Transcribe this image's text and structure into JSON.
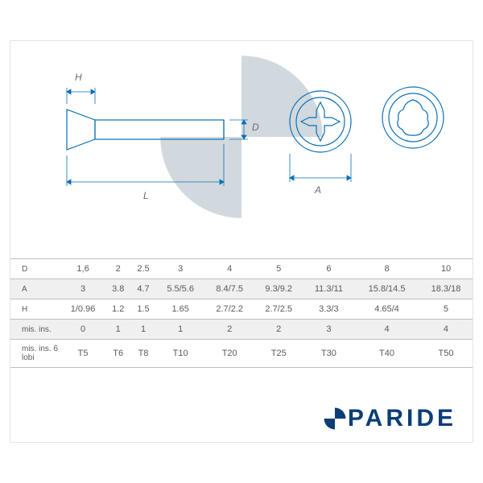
{
  "diagram": {
    "stroke": "#0b6fb8",
    "stroke_width": 1.2,
    "label_color": "#6a6a6a",
    "label_font_size": 12,
    "labels": {
      "H": "H",
      "L": "L",
      "D": "D",
      "A": "A"
    },
    "watermark_color": "#cfd7dd"
  },
  "table": {
    "text_color": "#5a5a5a",
    "border_color": "#bfbfbf",
    "alt_row_bg": "#f0f0f0",
    "row_bg": "#ffffff",
    "font_size": 11,
    "header_font_size": 10,
    "row_headers": [
      "D",
      "A",
      "H",
      "mis. ins.",
      "mis. ins. 6 lobi"
    ],
    "rows": [
      [
        "1,6",
        "2",
        "2.5",
        "3",
        "4",
        "5",
        "6",
        "8",
        "10"
      ],
      [
        "3",
        "3.8",
        "4.7",
        "5.5/5.6",
        "8.4/7.5",
        "9.3/9.2",
        "11.3/11",
        "15.8/14.5",
        "18.3/18"
      ],
      [
        "1/0.96",
        "1.2",
        "1.5",
        "1.65",
        "2.7/2.2",
        "2.7/2.5",
        "3.3/3",
        "4.65/4",
        "5"
      ],
      [
        "0",
        "1",
        "1",
        "1",
        "2",
        "2",
        "3",
        "4",
        "4"
      ],
      [
        "T5",
        "T6",
        "T8",
        "T10",
        "T20",
        "T25",
        "T30",
        "T40",
        "T50"
      ]
    ]
  },
  "brand": {
    "text_after_logo": "PARIDE",
    "color": "#0b3e78",
    "letter_spacing": 4,
    "font_size": 30
  }
}
